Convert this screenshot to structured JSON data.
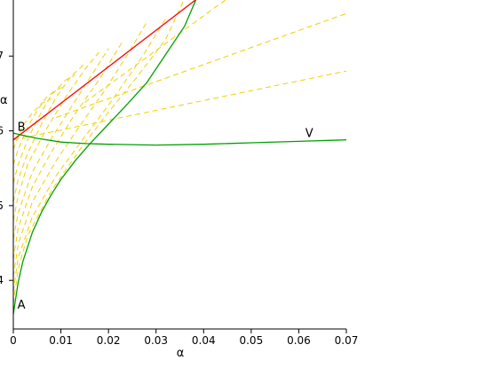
{
  "chart_data": {
    "type": "line",
    "title": "",
    "xlabel": "α",
    "ylabel": "α",
    "xlim": [
      0,
      0.07
    ],
    "ylim": [
      0.335,
      0.775
    ],
    "grid": false,
    "legend": "none",
    "x_ticks": [
      {
        "v": 0,
        "label": "0"
      },
      {
        "v": 0.01,
        "label": "0.01"
      },
      {
        "v": 0.02,
        "label": "0.02"
      },
      {
        "v": 0.03,
        "label": "0.03"
      },
      {
        "v": 0.04,
        "label": "0.04"
      },
      {
        "v": 0.05,
        "label": "0.05"
      },
      {
        "v": 0.06,
        "label": "0.06"
      },
      {
        "v": 0.07,
        "label": "0.07"
      }
    ],
    "y_ticks": [
      {
        "v": 0.4,
        "label": "4"
      },
      {
        "v": 0.5,
        "label": "5"
      },
      {
        "v": 0.6,
        "label": "6"
      },
      {
        "v": 0.7,
        "label": "7"
      }
    ],
    "series": [
      {
        "color": "#ff0000",
        "style": "solid",
        "x": [
          0,
          0.0387
        ],
        "y": [
          0.588,
          0.777
        ]
      },
      {
        "color": "#00a000",
        "style": "solid",
        "x": [
          0,
          0.001,
          0.002,
          0.004,
          0.006,
          0.008,
          0.01,
          0.013,
          0.016,
          0.02,
          0.024,
          0.028,
          0.032,
          0.036,
          0.0385
        ],
        "y": [
          0.355,
          0.397,
          0.425,
          0.464,
          0.492,
          0.515,
          0.535,
          0.56,
          0.582,
          0.609,
          0.636,
          0.664,
          0.702,
          0.74,
          0.777
        ]
      },
      {
        "color": "#00a000",
        "style": "solid",
        "x": [
          0,
          0.002,
          0.005,
          0.01,
          0.015,
          0.02,
          0.03,
          0.04,
          0.05,
          0.06,
          0.07
        ],
        "y": [
          0.597,
          0.594,
          0.59,
          0.585,
          0.583,
          0.582,
          0.581,
          0.582,
          0.584,
          0.586,
          0.588
        ]
      },
      {
        "color": "#f0d000",
        "style": "dashed",
        "x": [
          0,
          0.07
        ],
        "y": [
          0.588,
          0.68
        ]
      },
      {
        "color": "#f0d000",
        "style": "dashed",
        "x": [
          0.009,
          0.07
        ],
        "y": [
          0.618,
          0.757
        ]
      },
      {
        "color": "#f0d000",
        "style": "dashed",
        "x": [
          0.015,
          0.045
        ],
        "y": [
          0.638,
          0.777
        ]
      },
      {
        "color": "#f0d000",
        "style": "dashed",
        "x": [
          0,
          0.001,
          0.003,
          0.008,
          0.014,
          0.02,
          0.026,
          0.032,
          0.036
        ],
        "y": [
          0.369,
          0.415,
          0.46,
          0.52,
          0.575,
          0.625,
          0.672,
          0.722,
          0.777
        ]
      },
      {
        "color": "#f0d000",
        "style": "dashed",
        "x": [
          0,
          0.001,
          0.004,
          0.009,
          0.015,
          0.021,
          0.027,
          0.032
        ],
        "y": [
          0.385,
          0.43,
          0.485,
          0.54,
          0.592,
          0.643,
          0.698,
          0.75
        ]
      },
      {
        "color": "#f0d000",
        "style": "dashed",
        "x": [
          0,
          0.001,
          0.004,
          0.009,
          0.014,
          0.019,
          0.024,
          0.028
        ],
        "y": [
          0.405,
          0.448,
          0.505,
          0.56,
          0.607,
          0.652,
          0.702,
          0.745
        ]
      },
      {
        "color": "#f0d000",
        "style": "dashed",
        "x": [
          0,
          0.001,
          0.004,
          0.008,
          0.013,
          0.018,
          0.023
        ],
        "y": [
          0.428,
          0.47,
          0.525,
          0.572,
          0.623,
          0.668,
          0.72
        ]
      },
      {
        "color": "#f0d000",
        "style": "dashed",
        "x": [
          0,
          0.001,
          0.004,
          0.008,
          0.012,
          0.016,
          0.02
        ],
        "y": [
          0.455,
          0.49,
          0.545,
          0.59,
          0.63,
          0.67,
          0.71
        ]
      },
      {
        "color": "#f0d000",
        "style": "dashed",
        "x": [
          0,
          0.001,
          0.003,
          0.007,
          0.011,
          0.015,
          0.018
        ],
        "y": [
          0.48,
          0.513,
          0.555,
          0.603,
          0.645,
          0.682,
          0.705
        ]
      },
      {
        "color": "#f0d000",
        "style": "dashed",
        "x": [
          0,
          0.001,
          0.003,
          0.006,
          0.009,
          0.012,
          0.015
        ],
        "y": [
          0.505,
          0.535,
          0.57,
          0.61,
          0.645,
          0.672,
          0.69
        ]
      },
      {
        "color": "#f0d000",
        "style": "dashed",
        "x": [
          0,
          0.001,
          0.003,
          0.005,
          0.008,
          0.011,
          0.013
        ],
        "y": [
          0.53,
          0.555,
          0.588,
          0.615,
          0.648,
          0.668,
          0.675
        ]
      },
      {
        "color": "#f0d000",
        "style": "dashed",
        "x": [
          0,
          0.001,
          0.003,
          0.005,
          0.007,
          0.009,
          0.011
        ],
        "y": [
          0.555,
          0.575,
          0.605,
          0.627,
          0.645,
          0.655,
          0.66
        ]
      },
      {
        "color": "#f0d000",
        "style": "dashed",
        "x": [
          0,
          0.001,
          0.002,
          0.004,
          0.006,
          0.008
        ],
        "y": [
          0.575,
          0.592,
          0.607,
          0.624,
          0.637,
          0.643
        ]
      }
    ],
    "annotations": [
      {
        "text": "A",
        "x": 0.0005,
        "y": 0.362
      },
      {
        "text": "B",
        "x": 0.0005,
        "y": 0.6
      },
      {
        "text": "V",
        "x": 0.061,
        "y": 0.592
      }
    ]
  }
}
